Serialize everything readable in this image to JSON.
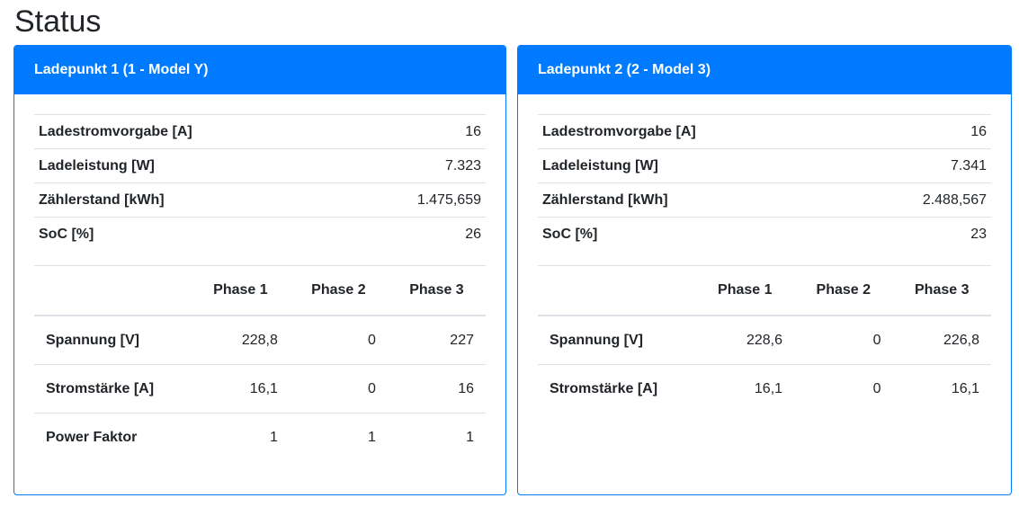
{
  "page": {
    "title": "Status"
  },
  "cards": [
    {
      "title": "Ladepunkt 1 (1 - Model Y)",
      "kv": [
        {
          "label": "Ladestromvorgabe [A]",
          "value": "16"
        },
        {
          "label": "Ladeleistung [W]",
          "value": "7.323"
        },
        {
          "label": "Zählerstand [kWh]",
          "value": "1.475,659"
        },
        {
          "label": "SoC [%]",
          "value": "26"
        }
      ],
      "phases": {
        "headers": [
          "",
          "Phase 1",
          "Phase 2",
          "Phase 3"
        ],
        "rows": [
          {
            "label": "Spannung [V]",
            "values": [
              "228,8",
              "0",
              "227"
            ]
          },
          {
            "label": "Stromstärke [A]",
            "values": [
              "16,1",
              "0",
              "16"
            ]
          },
          {
            "label": "Power Faktor",
            "values": [
              "1",
              "1",
              "1"
            ]
          }
        ]
      }
    },
    {
      "title": "Ladepunkt 2 (2 - Model 3)",
      "kv": [
        {
          "label": "Ladestromvorgabe [A]",
          "value": "16"
        },
        {
          "label": "Ladeleistung [W]",
          "value": "7.341"
        },
        {
          "label": "Zählerstand [kWh]",
          "value": "2.488,567"
        },
        {
          "label": "SoC [%]",
          "value": "23"
        }
      ],
      "phases": {
        "headers": [
          "",
          "Phase 1",
          "Phase 2",
          "Phase 3"
        ],
        "rows": [
          {
            "label": "Spannung [V]",
            "values": [
              "228,6",
              "0",
              "226,8"
            ]
          },
          {
            "label": "Stromstärke [A]",
            "values": [
              "16,1",
              "0",
              "16,1"
            ]
          }
        ]
      }
    }
  ],
  "colors": {
    "primary": "#007bff",
    "border": "#dee2e6",
    "text": "#212529"
  }
}
